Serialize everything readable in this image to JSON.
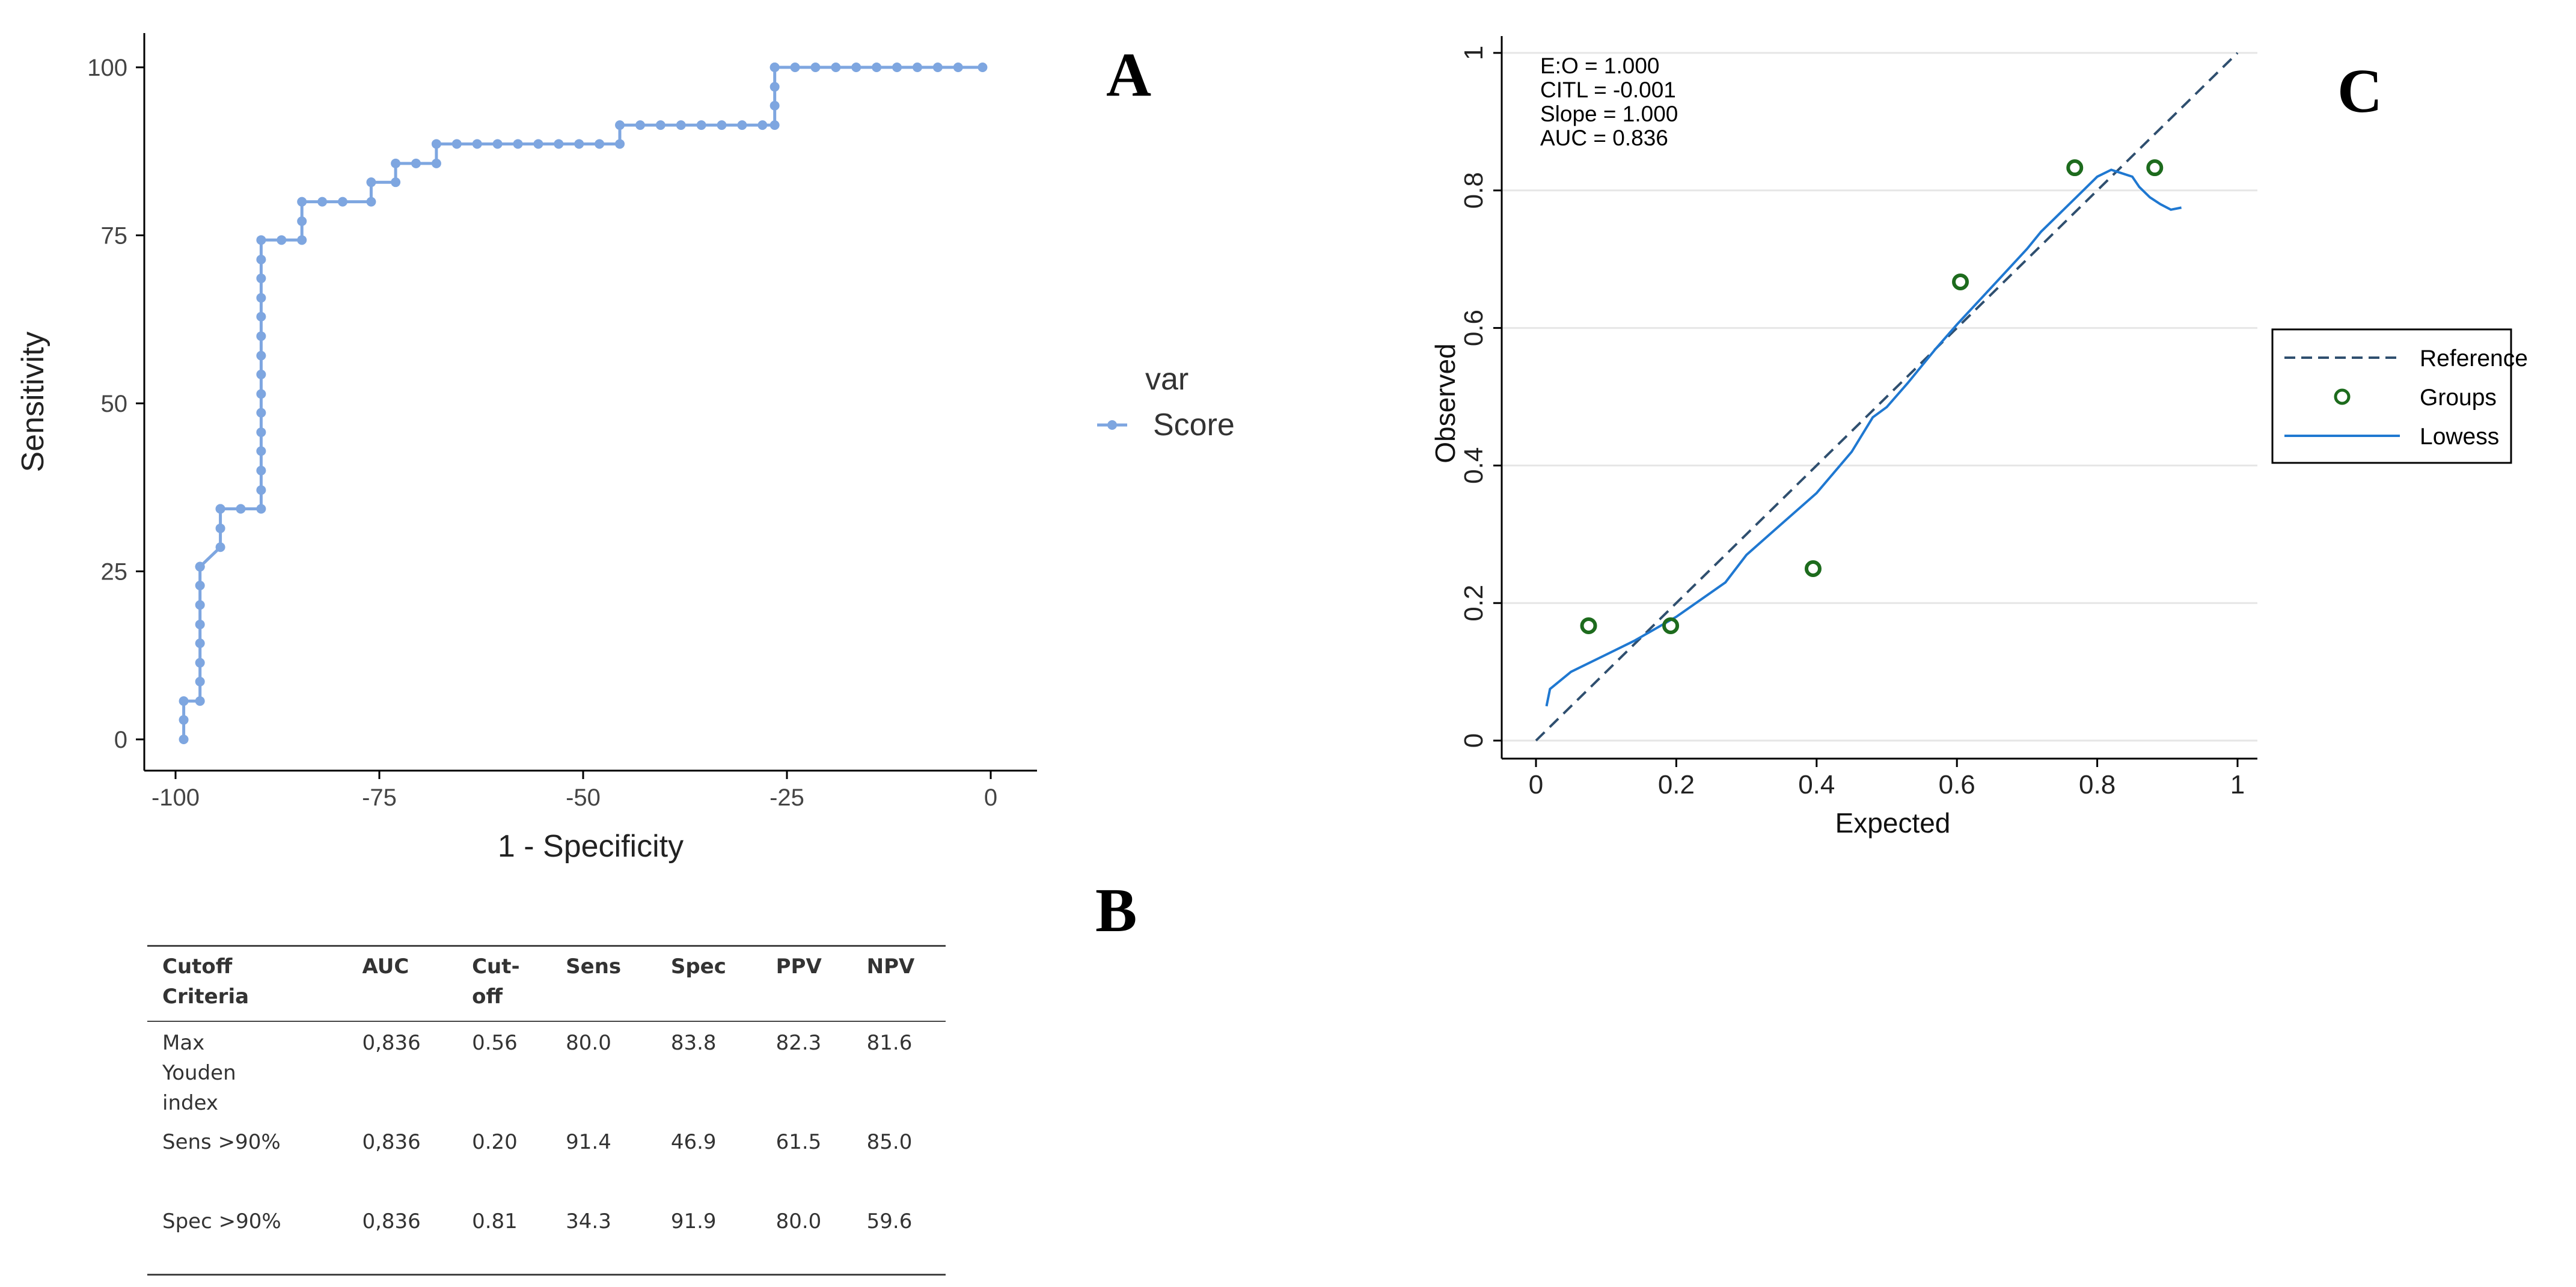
{
  "colors": {
    "roc": "#7ea6e0",
    "reference": "#2f4f6f",
    "groups": "#1d6b1d",
    "lowess": "#1f78d1",
    "grid": "#e6e6e6"
  },
  "panel_labels": {
    "a": "A",
    "b": "B",
    "c": "C"
  },
  "chart_data": [
    {
      "type": "line",
      "panel": "A",
      "xlabel": "1 - Specificity",
      "ylabel": "Sensitivity",
      "xlim": [
        -100,
        0
      ],
      "ylim": [
        0,
        100
      ],
      "xticks": [
        "-100",
        "-75",
        "-50",
        "-25",
        "0"
      ],
      "yticks": [
        "0",
        "25",
        "50",
        "75",
        "100"
      ],
      "legend_title": "var",
      "series": [
        {
          "name": "Score",
          "x": [
            -99,
            -99,
            -99,
            -97,
            -97,
            -97,
            -97,
            -97,
            -97,
            -97,
            -97,
            -97,
            -97,
            -94.5,
            -94.5,
            -94.5,
            -94.5,
            -92,
            -89.5,
            -89.5,
            -89.5,
            -89.5,
            -89.5,
            -89.5,
            -89.5,
            -89.5,
            -89.5,
            -89.5,
            -89.5,
            -89.5,
            -89.5,
            -89.5,
            -89.5,
            -87,
            -84.5,
            -84.5,
            -84.5,
            -82,
            -79.5,
            -76,
            -76,
            -73,
            -73,
            -70.5,
            -68,
            -68,
            -65.5,
            -63,
            -60.5,
            -58,
            -55.5,
            -53,
            -50.5,
            -48,
            -45.5,
            -45.5,
            -43,
            -40.5,
            -38,
            -35.5,
            -33,
            -30.5,
            -28,
            -26.5,
            -26.5,
            -26.5,
            -26.5,
            -26.5,
            -24,
            -21.5,
            -19,
            -16.5,
            -14,
            -11.5,
            -9,
            -6.5,
            -4,
            -1
          ],
          "y": [
            0,
            2.9,
            5.7,
            5.7,
            8.6,
            11.4,
            14.3,
            17.1,
            20,
            22.9,
            25.7,
            25.7,
            25.7,
            28.6,
            31.4,
            34.3,
            34.3,
            34.3,
            34.3,
            37.1,
            40,
            42.9,
            45.7,
            48.6,
            51.4,
            54.3,
            57.1,
            60,
            62.9,
            65.7,
            68.6,
            71.4,
            74.3,
            74.3,
            74.3,
            77.1,
            80,
            80,
            80,
            80,
            82.9,
            82.9,
            85.7,
            85.7,
            85.7,
            88.6,
            88.6,
            88.6,
            88.6,
            88.6,
            88.6,
            88.6,
            88.6,
            88.6,
            88.6,
            91.4,
            91.4,
            91.4,
            91.4,
            91.4,
            91.4,
            91.4,
            91.4,
            91.4,
            94.3,
            97.1,
            100,
            100,
            100,
            100,
            100,
            100,
            100,
            100,
            100,
            100,
            100,
            100
          ]
        }
      ]
    },
    {
      "type": "scatter",
      "panel": "C",
      "xlabel": "Expected",
      "ylabel": "Observed",
      "xlim": [
        0,
        1
      ],
      "ylim": [
        0,
        1
      ],
      "xticks": [
        "0",
        "0.2",
        "0.4",
        "0.6",
        "0.8",
        "1"
      ],
      "yticks": [
        "0",
        "0.2",
        "0.4",
        "0.6",
        "0.8",
        "1"
      ],
      "annotations": [
        "E:O = 1.000",
        "CITL = -0.001",
        "Slope = 1.000",
        "AUC = 0.836"
      ],
      "legend": [
        "Reference",
        "Groups",
        "Lowess"
      ],
      "reference": {
        "x": [
          0,
          1
        ],
        "y": [
          0,
          1
        ]
      },
      "groups": {
        "x": [
          0.075,
          0.192,
          0.395,
          0.605,
          0.768,
          0.882
        ],
        "y": [
          0.167,
          0.167,
          0.25,
          0.667,
          0.833,
          0.833
        ]
      },
      "lowess": {
        "x": [
          0.015,
          0.02,
          0.05,
          0.1,
          0.14,
          0.2,
          0.27,
          0.3,
          0.35,
          0.4,
          0.45,
          0.48,
          0.5,
          0.53,
          0.57,
          0.6,
          0.65,
          0.7,
          0.72,
          0.75,
          0.78,
          0.8,
          0.82,
          0.835,
          0.85,
          0.86,
          0.875,
          0.89,
          0.905,
          0.92
        ],
        "y": [
          0.05,
          0.075,
          0.1,
          0.125,
          0.145,
          0.18,
          0.23,
          0.27,
          0.315,
          0.36,
          0.42,
          0.47,
          0.485,
          0.52,
          0.57,
          0.605,
          0.66,
          0.715,
          0.74,
          0.77,
          0.8,
          0.82,
          0.83,
          0.825,
          0.82,
          0.805,
          0.79,
          0.78,
          0.772,
          0.775
        ]
      }
    }
  ],
  "table": {
    "headers": [
      [
        "Cutoff",
        "Criteria"
      ],
      [
        "AUC"
      ],
      [
        "Cut-",
        "off"
      ],
      [
        "Sens"
      ],
      [
        "Spec"
      ],
      [
        "PPV"
      ],
      [
        "NPV"
      ]
    ],
    "rows": [
      [
        [
          "Max",
          "Youden",
          "index"
        ],
        [
          "0,836"
        ],
        [
          "0.56"
        ],
        [
          "80.0"
        ],
        [
          "83.8"
        ],
        [
          "82.3"
        ],
        [
          "81.6"
        ]
      ],
      [
        [
          "Sens >90%"
        ],
        [
          "0,836"
        ],
        [
          "0.20"
        ],
        [
          "91.4"
        ],
        [
          "46.9"
        ],
        [
          "61.5"
        ],
        [
          "85.0"
        ]
      ],
      [
        [
          "Spec >90%"
        ],
        [
          "0,836"
        ],
        [
          "0.81"
        ],
        [
          "34.3"
        ],
        [
          "91.9"
        ],
        [
          "80.0"
        ],
        [
          "59.6"
        ]
      ]
    ]
  }
}
